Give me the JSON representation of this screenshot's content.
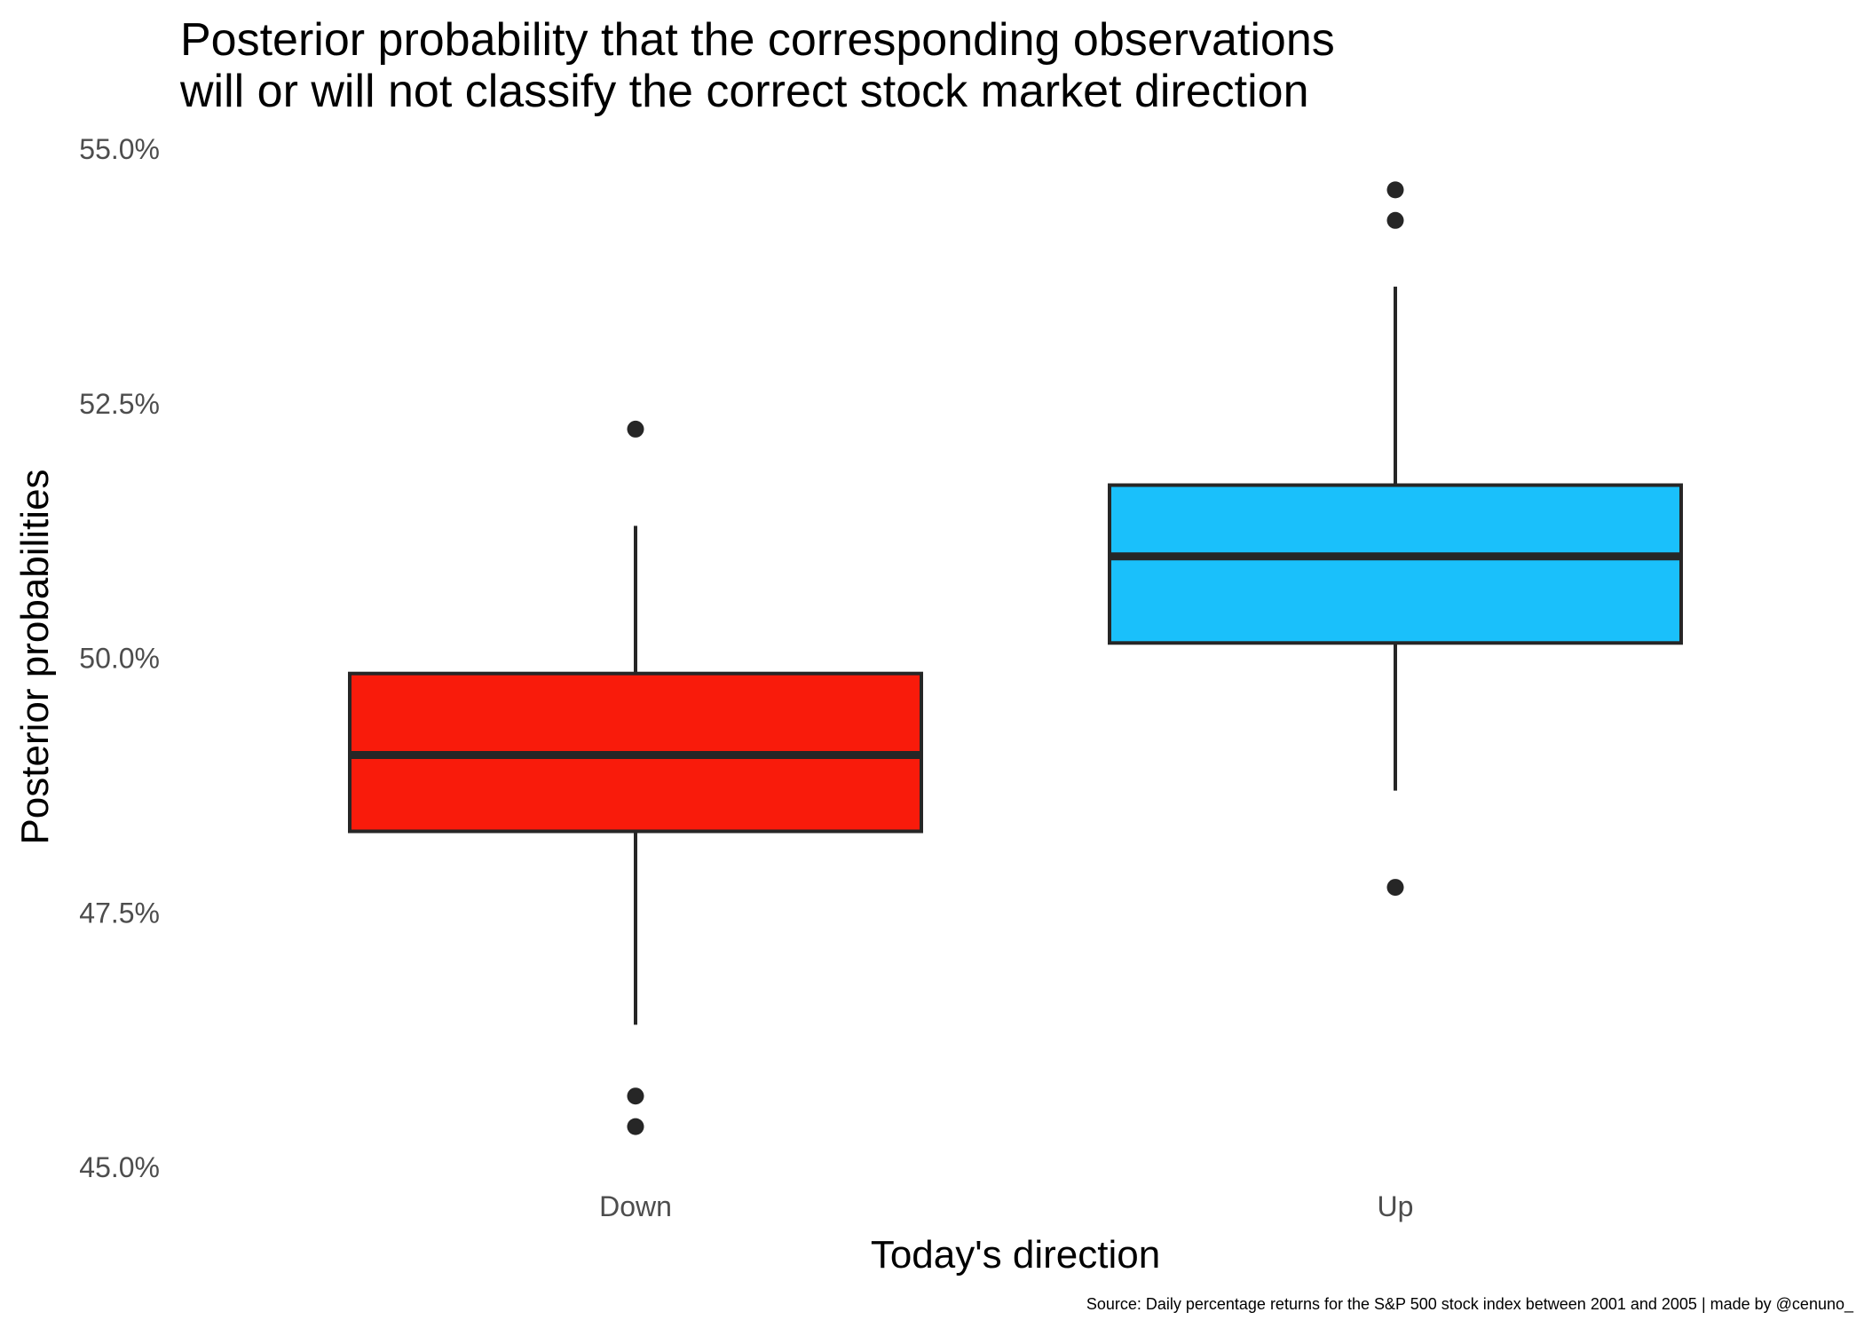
{
  "chart_data": {
    "type": "boxplot",
    "title_lines": [
      "Posterior probability that the corresponding observations",
      "will or will not classify the correct stock market direction"
    ],
    "xlabel": "Today's direction",
    "ylabel": "Posterior probabilities",
    "caption": "Source: Daily percentage returns for the S&P 500 stock index between 2001 and 2005 | made by @cenuno_",
    "ylim": [
      45.0,
      55.0
    ],
    "y_unit": "%",
    "y_ticks": [
      45.0,
      47.5,
      50.0,
      52.5,
      55.0
    ],
    "y_tick_labels": [
      "45.0%",
      "47.5%",
      "50.0%",
      "52.5%",
      "55.0%"
    ],
    "categories": [
      "Down",
      "Up"
    ],
    "boxes": [
      {
        "category": "Down",
        "color": "#f91b0b",
        "whisker_low": 46.4,
        "q1": 48.3,
        "median": 49.05,
        "q3": 49.85,
        "whisker_high": 51.3,
        "outliers": [
          52.25,
          45.7,
          45.4
        ]
      },
      {
        "category": "Up",
        "color": "#1ac0fb",
        "whisker_low": 48.7,
        "q1": 50.15,
        "median": 51.0,
        "q3": 51.7,
        "whisker_high": 53.65,
        "outliers": [
          54.6,
          54.3,
          47.75
        ]
      }
    ],
    "grid": false,
    "legend": "none"
  }
}
